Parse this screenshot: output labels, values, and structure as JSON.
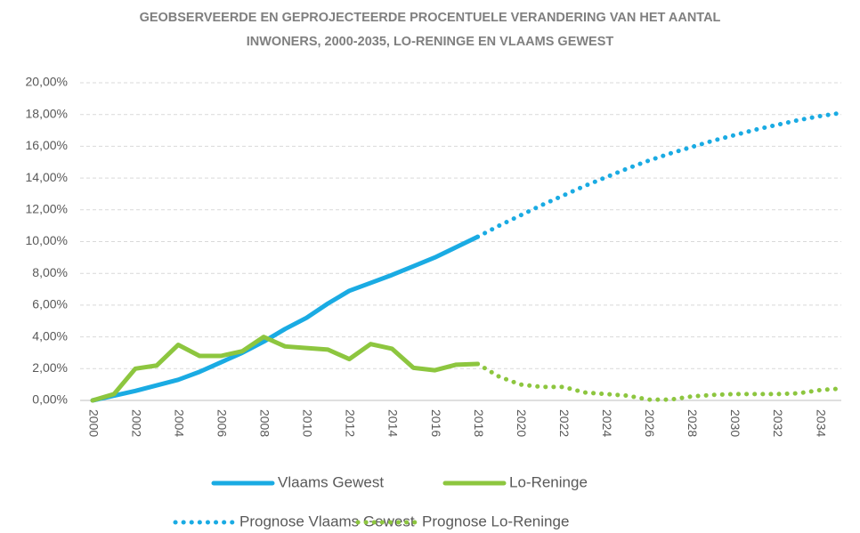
{
  "chart_data": {
    "type": "line",
    "title": [
      "GEOBSERVEERDE EN GEPROJECTEERDE PROCENTUELE VERANDERING VAN HET AANTAL",
      "INWONERS, 2000-2035, LO-RENINGE EN VLAAMS GEWEST"
    ],
    "x": [
      2000,
      2001,
      2002,
      2003,
      2004,
      2005,
      2006,
      2007,
      2008,
      2009,
      2010,
      2011,
      2012,
      2013,
      2014,
      2015,
      2016,
      2017,
      2018,
      2019,
      2020,
      2021,
      2022,
      2023,
      2024,
      2025,
      2026,
      2027,
      2028,
      2029,
      2030,
      2031,
      2032,
      2033,
      2034,
      2035
    ],
    "xlim": [
      2000,
      2035
    ],
    "xticks": [
      2000,
      2002,
      2004,
      2006,
      2008,
      2010,
      2012,
      2014,
      2016,
      2018,
      2020,
      2022,
      2024,
      2026,
      2028,
      2030,
      2032,
      2034
    ],
    "ylim": [
      0,
      20
    ],
    "yticks": [
      {
        "value": 0,
        "label": "0,00%"
      },
      {
        "value": 2,
        "label": "2,00%"
      },
      {
        "value": 4,
        "label": "4,00%"
      },
      {
        "value": 6,
        "label": "6,00%"
      },
      {
        "value": 8,
        "label": "8,00%"
      },
      {
        "value": 10,
        "label": "10,00%"
      },
      {
        "value": 12,
        "label": "12,00%"
      },
      {
        "value": 14,
        "label": "14,00%"
      },
      {
        "value": 16,
        "label": "16,00%"
      },
      {
        "value": 18,
        "label": "18,00%"
      },
      {
        "value": 20,
        "label": "20,00%"
      }
    ],
    "grid": true,
    "series": [
      {
        "name": "Vlaams Gewest",
        "color": "#1aabe3",
        "dash": "solid",
        "values": [
          0,
          0.3,
          0.6,
          0.95,
          1.3,
          1.8,
          2.4,
          3.0,
          3.7,
          4.5,
          5.2,
          6.1,
          6.9,
          7.4,
          7.9,
          8.45,
          9.0,
          9.65,
          10.3,
          null,
          null,
          null,
          null,
          null,
          null,
          null,
          null,
          null,
          null,
          null,
          null,
          null,
          null,
          null,
          null,
          null
        ]
      },
      {
        "name": "Lo-Reninge",
        "color": "#8dc63f",
        "dash": "solid",
        "values": [
          0,
          0.4,
          2.0,
          2.2,
          3.5,
          2.8,
          2.8,
          3.1,
          4.0,
          3.4,
          3.3,
          3.2,
          2.6,
          3.55,
          3.25,
          2.05,
          1.9,
          2.25,
          2.3,
          null,
          null,
          null,
          null,
          null,
          null,
          null,
          null,
          null,
          null,
          null,
          null,
          null,
          null,
          null,
          null,
          null
        ]
      },
      {
        "name": "Prognose Vlaams Gewest",
        "color": "#1aabe3",
        "dash": "dotted",
        "values": [
          null,
          null,
          null,
          null,
          null,
          null,
          null,
          null,
          null,
          null,
          null,
          null,
          null,
          null,
          null,
          null,
          null,
          null,
          10.3,
          11.0,
          11.65,
          12.3,
          12.9,
          13.5,
          14.05,
          14.6,
          15.1,
          15.55,
          15.95,
          16.35,
          16.7,
          17.05,
          17.35,
          17.65,
          17.9,
          18.1
        ]
      },
      {
        "name": "Prognose Lo-Reninge",
        "color": "#8dc63f",
        "dash": "dotted",
        "values": [
          null,
          null,
          null,
          null,
          null,
          null,
          null,
          null,
          null,
          null,
          null,
          null,
          null,
          null,
          null,
          null,
          null,
          null,
          2.3,
          1.5,
          1.0,
          0.85,
          0.85,
          0.5,
          0.4,
          0.3,
          0.05,
          0.05,
          0.25,
          0.35,
          0.4,
          0.4,
          0.4,
          0.45,
          0.65,
          0.75
        ]
      }
    ]
  }
}
